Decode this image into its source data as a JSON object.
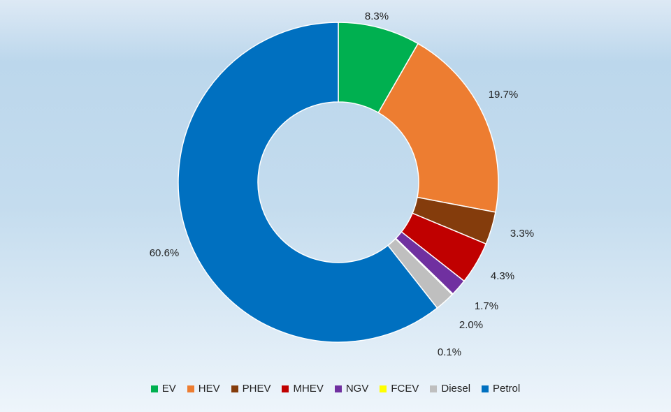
{
  "chart_data": {
    "type": "pie",
    "style": "donut",
    "legend_position": "bottom",
    "categories": [
      "EV",
      "HEV",
      "PHEV",
      "MHEV",
      "NGV",
      "FCEV",
      "Diesel",
      "Petrol"
    ],
    "values": [
      8.3,
      19.7,
      3.3,
      4.3,
      1.7,
      0.1,
      2.0,
      60.6
    ],
    "labels": [
      "8.3%",
      "19.7%",
      "3.3%",
      "4.3%",
      "1.7%",
      "0.1%",
      "2.0%",
      "60.6%"
    ],
    "colors": [
      "#00b050",
      "#ed7d31",
      "#843c0c",
      "#c00000",
      "#7030a0",
      "#ffff00",
      "#bfbfbf",
      "#0070c0"
    ]
  }
}
